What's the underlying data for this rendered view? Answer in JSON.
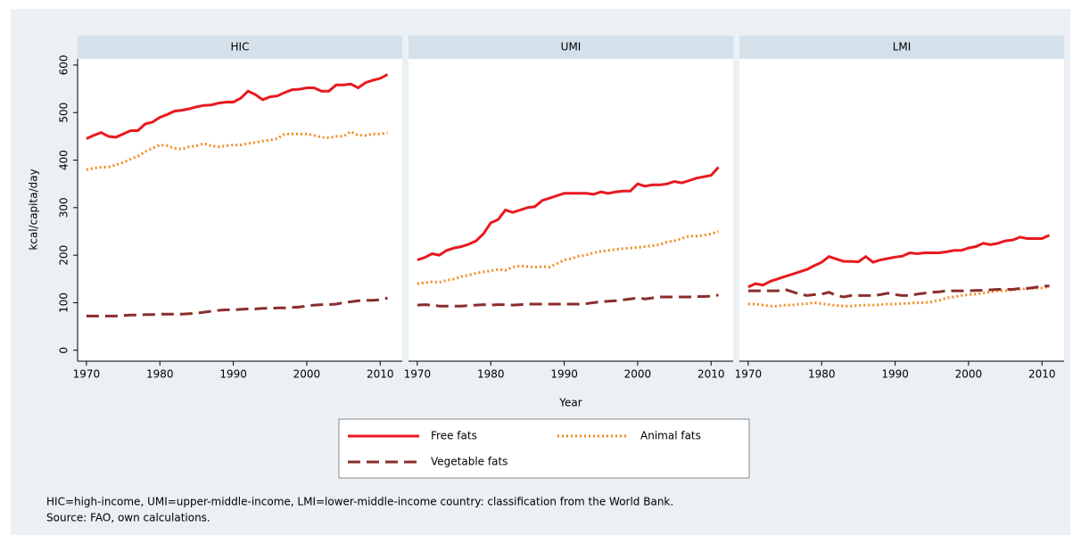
{
  "chart_data": [
    {
      "type": "line",
      "title": "HIC",
      "y_label": "kcal/capita/day",
      "x_label": "Year",
      "x": [
        1970,
        1971,
        1972,
        1973,
        1974,
        1975,
        1976,
        1977,
        1978,
        1979,
        1980,
        1981,
        1982,
        1983,
        1984,
        1985,
        1986,
        1987,
        1988,
        1989,
        1990,
        1991,
        1992,
        1993,
        1994,
        1995,
        1996,
        1997,
        1998,
        1999,
        2000,
        2001,
        2002,
        2003,
        2004,
        2005,
        2006,
        2007,
        2008,
        2009,
        2010,
        2011
      ],
      "xlim": [
        1968.8,
        2013
      ],
      "xticks": [
        1970,
        1980,
        1990,
        2000,
        2010
      ],
      "ylim": [
        -23,
        613
      ],
      "yticks": [
        0,
        100,
        200,
        300,
        400,
        500,
        600
      ],
      "series": [
        {
          "name": "Free fats",
          "color": "#e8191e",
          "style": "solid",
          "values": [
            445,
            452,
            458,
            450,
            448,
            455,
            462,
            462,
            476,
            480,
            490,
            496,
            503,
            505,
            508,
            512,
            515,
            516,
            520,
            522,
            522,
            530,
            545,
            538,
            527,
            533,
            535,
            542,
            548,
            549,
            552,
            552,
            545,
            545,
            558,
            558,
            560,
            552,
            563,
            568,
            572,
            580
          ]
        },
        {
          "name": "Animal fats",
          "color": "#f28a1e",
          "style": "dotted",
          "values": [
            380,
            383,
            385,
            385,
            390,
            395,
            402,
            408,
            418,
            425,
            432,
            430,
            425,
            423,
            428,
            430,
            435,
            430,
            428,
            430,
            432,
            432,
            435,
            437,
            440,
            442,
            445,
            455,
            455,
            455,
            455,
            452,
            448,
            447,
            450,
            450,
            460,
            452,
            452,
            455,
            455,
            457
          ]
        },
        {
          "name": "Vegetable fats",
          "color": "#8b2d2d",
          "style": "dashed",
          "values": [
            72,
            72,
            72,
            72,
            72,
            73,
            74,
            74,
            75,
            75,
            76,
            76,
            76,
            76,
            77,
            78,
            80,
            82,
            84,
            85,
            85,
            86,
            87,
            87,
            88,
            88,
            89,
            89,
            90,
            91,
            93,
            95,
            96,
            96,
            97,
            100,
            102,
            104,
            105,
            105,
            106,
            110
          ]
        }
      ]
    },
    {
      "type": "line",
      "title": "UMI",
      "x": [
        1970,
        1971,
        1972,
        1973,
        1974,
        1975,
        1976,
        1977,
        1978,
        1979,
        1980,
        1981,
        1982,
        1983,
        1984,
        1985,
        1986,
        1987,
        1988,
        1989,
        1990,
        1991,
        1992,
        1993,
        1994,
        1995,
        1996,
        1997,
        1998,
        1999,
        2000,
        2001,
        2002,
        2003,
        2004,
        2005,
        2006,
        2007,
        2008,
        2009,
        2010,
        2011
      ],
      "xlim": [
        1968.8,
        2013
      ],
      "xticks": [
        1970,
        1980,
        1990,
        2000,
        2010
      ],
      "ylim": [
        -23,
        613
      ],
      "series": [
        {
          "name": "Free fats",
          "color": "#e8191e",
          "style": "solid",
          "values": [
            190,
            195,
            203,
            200,
            210,
            215,
            218,
            223,
            230,
            245,
            268,
            275,
            295,
            290,
            295,
            300,
            302,
            315,
            320,
            325,
            330,
            330,
            330,
            330,
            328,
            333,
            330,
            333,
            335,
            335,
            350,
            345,
            348,
            348,
            350,
            355,
            352,
            357,
            362,
            365,
            368,
            385
          ]
        },
        {
          "name": "Animal fats",
          "color": "#f28a1e",
          "style": "dotted",
          "values": [
            140,
            142,
            144,
            143,
            147,
            150,
            155,
            158,
            162,
            165,
            167,
            170,
            168,
            175,
            178,
            176,
            175,
            176,
            175,
            182,
            190,
            193,
            198,
            200,
            205,
            208,
            210,
            212,
            214,
            215,
            216,
            218,
            220,
            222,
            228,
            230,
            235,
            240,
            240,
            242,
            245,
            250
          ]
        },
        {
          "name": "Vegetable fats",
          "color": "#8b2d2d",
          "style": "dashed",
          "values": [
            95,
            96,
            95,
            93,
            93,
            93,
            93,
            94,
            95,
            96,
            95,
            96,
            96,
            95,
            96,
            97,
            97,
            97,
            97,
            97,
            97,
            97,
            97,
            98,
            100,
            102,
            103,
            104,
            106,
            108,
            110,
            108,
            110,
            112,
            112,
            112,
            112,
            112,
            113,
            113,
            114,
            116
          ]
        }
      ]
    },
    {
      "type": "line",
      "title": "LMI",
      "x": [
        1970,
        1971,
        1972,
        1973,
        1974,
        1975,
        1976,
        1977,
        1978,
        1979,
        1980,
        1981,
        1982,
        1983,
        1984,
        1985,
        1986,
        1987,
        1988,
        1989,
        1990,
        1991,
        1992,
        1993,
        1994,
        1995,
        1996,
        1997,
        1998,
        1999,
        2000,
        2001,
        2002,
        2003,
        2004,
        2005,
        2006,
        2007,
        2008,
        2009,
        2010,
        2011
      ],
      "xlim": [
        1968.8,
        2013
      ],
      "xticks": [
        1970,
        1980,
        1990,
        2000,
        2010
      ],
      "ylim": [
        -23,
        613
      ],
      "series": [
        {
          "name": "Free fats",
          "color": "#e8191e",
          "style": "solid",
          "values": [
            133,
            140,
            137,
            145,
            150,
            155,
            160,
            165,
            170,
            178,
            185,
            197,
            192,
            187,
            187,
            186,
            197,
            185,
            190,
            193,
            196,
            198,
            205,
            203,
            205,
            205,
            205,
            207,
            210,
            210,
            215,
            218,
            225,
            222,
            225,
            230,
            232,
            238,
            235,
            235,
            235,
            242
          ]
        },
        {
          "name": "Animal fats",
          "color": "#f28a1e",
          "style": "dotted",
          "values": [
            97,
            97,
            95,
            93,
            93,
            95,
            95,
            97,
            98,
            100,
            98,
            96,
            94,
            93,
            93,
            94,
            95,
            95,
            96,
            97,
            97,
            98,
            99,
            100,
            100,
            102,
            105,
            110,
            112,
            115,
            117,
            118,
            120,
            123,
            125,
            125,
            127,
            128,
            130,
            130,
            131,
            134
          ]
        },
        {
          "name": "Vegetable fats",
          "color": "#8b2d2d",
          "style": "dashed",
          "values": [
            125,
            125,
            125,
            125,
            125,
            128,
            123,
            118,
            115,
            117,
            118,
            122,
            115,
            112,
            115,
            115,
            115,
            115,
            117,
            120,
            117,
            115,
            115,
            118,
            120,
            122,
            123,
            125,
            125,
            125,
            125,
            126,
            126,
            127,
            128,
            128,
            128,
            130,
            130,
            132,
            135,
            135
          ]
        }
      ]
    }
  ],
  "notes": [
    "HIC=high-income, UMI=upper-middle-income, LMI=lower-middle-income country: classification from the World Bank.",
    "Source: FAO, own calculations."
  ]
}
